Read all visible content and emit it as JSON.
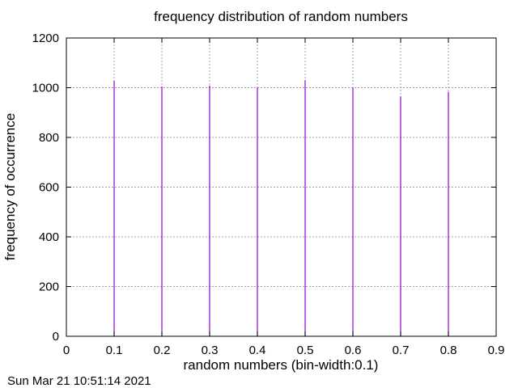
{
  "chart_data": {
    "type": "bar",
    "title": "frequency distribution of random numbers",
    "xlabel": "random numbers (bin-width:0.1)",
    "ylabel": "frequency of occurrence",
    "xlim": [
      0,
      0.9
    ],
    "ylim": [
      0,
      1200
    ],
    "xticks": [
      "0",
      "0.1",
      "0.2",
      "0.3",
      "0.4",
      "0.5",
      "0.6",
      "0.7",
      "0.8",
      "0.9"
    ],
    "yticks": [
      "0",
      "200",
      "400",
      "600",
      "800",
      "1000",
      "1200"
    ],
    "x": [
      0.1,
      0.2,
      0.3,
      0.4,
      0.5,
      0.6,
      0.7,
      0.8
    ],
    "values": [
      1028,
      1005,
      1008,
      1001,
      1030,
      1000,
      965,
      983
    ],
    "grid": true,
    "bar_color": "#9400d3"
  },
  "timestamp": "Sun Mar 21 10:51:14 2021"
}
